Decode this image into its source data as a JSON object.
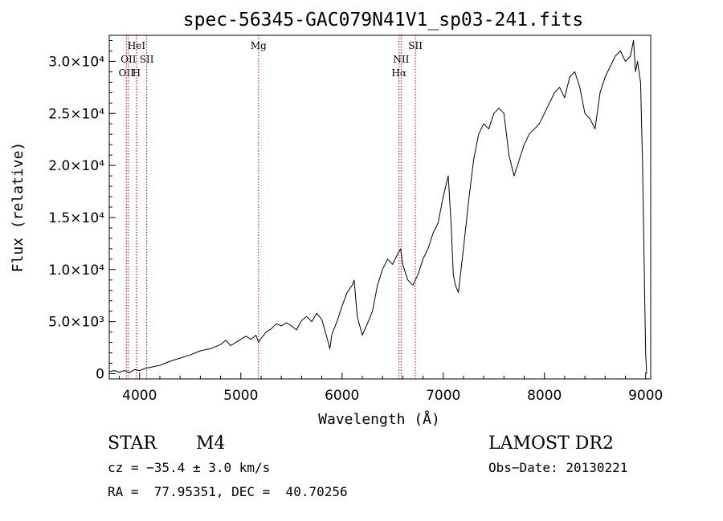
{
  "chart_data": {
    "type": "line",
    "title": "spec-56345-GAC079N41V1_sp03-241.fits",
    "xlabel": "Wavelength (Å)",
    "ylabel": "Flux (relative)",
    "xlim": [
      3700,
      9050
    ],
    "ylim": [
      -500,
      32500
    ],
    "x_ticks": [
      {
        "value": 4000,
        "label": "4000"
      },
      {
        "value": 5000,
        "label": "5000"
      },
      {
        "value": 6000,
        "label": "6000"
      },
      {
        "value": 7000,
        "label": "7000"
      },
      {
        "value": 8000,
        "label": "8000"
      },
      {
        "value": 9000,
        "label": "9000"
      }
    ],
    "y_ticks": [
      {
        "value": 0,
        "label": "0"
      },
      {
        "value": 5000,
        "label": "5.0×10³"
      },
      {
        "value": 10000,
        "label": "1.0×10⁴"
      },
      {
        "value": 15000,
        "label": "1.5×10⁴"
      },
      {
        "value": 20000,
        "label": "2.0×10⁴"
      },
      {
        "value": 25000,
        "label": "2.5×10⁴"
      },
      {
        "value": 30000,
        "label": "3.0×10⁴"
      }
    ],
    "line_color": "#000000",
    "marker_color": "#cc0000",
    "lines": [
      {
        "wavelength": 3869,
        "label": "OII",
        "row": 2
      },
      {
        "wavelength": 3889,
        "label": "OII",
        "row": 1
      },
      {
        "wavelength": 3969,
        "label": "H",
        "row": 2
      },
      {
        "wavelength": 3970,
        "label": "HeI",
        "row": 0
      },
      {
        "wavelength": 4070,
        "label": "SII",
        "row": 1
      },
      {
        "wavelength": 5175,
        "label": "Mg",
        "row": 0
      },
      {
        "wavelength": 6563,
        "label": "Hα",
        "row": 2
      },
      {
        "wavelength": 6584,
        "label": "NII",
        "row": 1
      },
      {
        "wavelength": 6725,
        "label": "SII",
        "row": 0
      }
    ],
    "series": [
      {
        "x": [
          3700,
          3750,
          3800,
          3850,
          3900,
          3950,
          4000,
          4050,
          4100,
          4150,
          4200,
          4300,
          4400,
          4500,
          4600,
          4700,
          4800,
          4850,
          4900,
          4950,
          5000,
          5050,
          5100,
          5150,
          5175,
          5200,
          5250,
          5300,
          5350,
          5400,
          5450,
          5500,
          5550,
          5600,
          5650,
          5700,
          5750,
          5800,
          5850,
          5880,
          5900,
          5950,
          6000,
          6050,
          6100,
          6120,
          6150,
          6200,
          6250,
          6300,
          6350,
          6400,
          6450,
          6500,
          6550,
          6580,
          6600,
          6650,
          6700,
          6750,
          6800,
          6850,
          6900,
          6950,
          7000,
          7050,
          7080,
          7100,
          7120,
          7150,
          7200,
          7250,
          7300,
          7350,
          7400,
          7450,
          7500,
          7550,
          7600,
          7650,
          7700,
          7750,
          7800,
          7850,
          7900,
          7950,
          8000,
          8050,
          8100,
          8150,
          8200,
          8250,
          8300,
          8350,
          8400,
          8450,
          8500,
          8550,
          8600,
          8650,
          8700,
          8750,
          8800,
          8850,
          8880,
          8900,
          8920,
          8950,
          8970,
          8990,
          9000,
          9010
        ],
        "y": [
          200,
          300,
          150,
          300,
          100,
          400,
          300,
          500,
          600,
          700,
          800,
          1200,
          1500,
          1800,
          2200,
          2400,
          2800,
          3200,
          2700,
          3000,
          3300,
          3600,
          3300,
          3700,
          3000,
          3400,
          4000,
          4300,
          4800,
          4600,
          4900,
          4600,
          4200,
          5100,
          5500,
          5000,
          5800,
          5200,
          3500,
          2400,
          3800,
          5000,
          6500,
          7800,
          8500,
          9000,
          5500,
          3700,
          4800,
          6000,
          8500,
          10000,
          11000,
          10500,
          11500,
          12000,
          10500,
          9000,
          8500,
          9500,
          11000,
          12000,
          13500,
          14500,
          17000,
          19000,
          14000,
          9500,
          8500,
          7800,
          12000,
          16500,
          20500,
          23000,
          24000,
          23500,
          25000,
          25500,
          25000,
          21000,
          19000,
          20500,
          22000,
          23000,
          23500,
          24000,
          25000,
          26000,
          27000,
          27500,
          26500,
          28500,
          29000,
          27500,
          25000,
          24500,
          23500,
          27000,
          28500,
          29500,
          30500,
          31000,
          30000,
          30500,
          32000,
          29000,
          30000,
          28000,
          20000,
          8000,
          2000,
          0
        ]
      }
    ]
  },
  "info": {
    "object_class": "STAR",
    "subclass": "M4",
    "redshift": "cz = −35.4 ± 3.0 km/s",
    "coords": "RA =  77.95351, DEC =  40.70256",
    "survey": "LAMOST DR2",
    "obs_date": "Obs−Date: 20130221"
  }
}
